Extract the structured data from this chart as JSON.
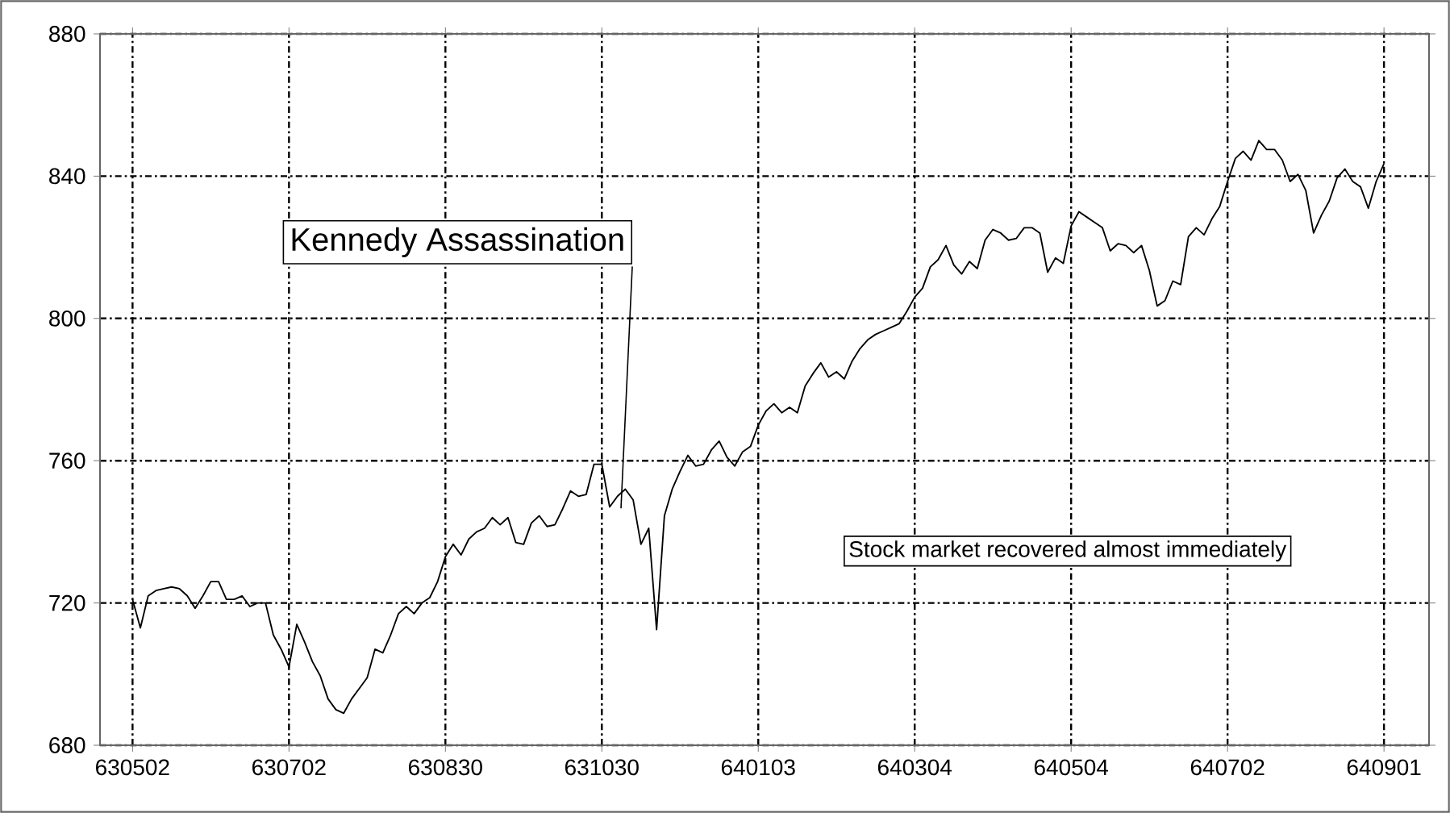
{
  "chart_data": {
    "type": "line",
    "categories": [
      "630502",
      null,
      null,
      null,
      null,
      null,
      null,
      null,
      null,
      null,
      null,
      null,
      null,
      null,
      null,
      null,
      null,
      null,
      null,
      null,
      "630702",
      null,
      null,
      null,
      null,
      null,
      null,
      null,
      null,
      null,
      null,
      null,
      null,
      null,
      null,
      null,
      null,
      null,
      null,
      null,
      "630830",
      null,
      null,
      null,
      null,
      null,
      null,
      null,
      null,
      null,
      null,
      null,
      null,
      null,
      null,
      null,
      null,
      null,
      null,
      null,
      "631030",
      null,
      null,
      null,
      null,
      null,
      null,
      null,
      null,
      null,
      null,
      null,
      null,
      null,
      null,
      null,
      null,
      null,
      null,
      null,
      "640103",
      null,
      null,
      null,
      null,
      null,
      null,
      null,
      null,
      null,
      null,
      null,
      null,
      null,
      null,
      null,
      null,
      null,
      null,
      null,
      "640304",
      null,
      null,
      null,
      null,
      null,
      null,
      null,
      null,
      null,
      null,
      null,
      null,
      null,
      null,
      null,
      null,
      null,
      null,
      null,
      "640504",
      null,
      null,
      null,
      null,
      null,
      null,
      null,
      null,
      null,
      null,
      null,
      null,
      null,
      null,
      null,
      null,
      null,
      null,
      null,
      "640702",
      null,
      null,
      null,
      null,
      null,
      null,
      null,
      null,
      null,
      null,
      null,
      null,
      null,
      null,
      null,
      null,
      null,
      null,
      null,
      "640901"
    ],
    "values": [
      721,
      713,
      722,
      723.5,
      724,
      724.5,
      724,
      722,
      718.5,
      722,
      726,
      726,
      721,
      721,
      722,
      719,
      720,
      720,
      711,
      707,
      702,
      714,
      709,
      703.5,
      699.5,
      693,
      690,
      689,
      693,
      696,
      699,
      707,
      706,
      711,
      717,
      719,
      717,
      720,
      721.5,
      726,
      733,
      736.5,
      733.5,
      738,
      740,
      741,
      744,
      742,
      744,
      737,
      736.5,
      742.5,
      744.5,
      741.5,
      742,
      746.5,
      751.5,
      750,
      750.5,
      759,
      759,
      747,
      750,
      752,
      749,
      736.5,
      741,
      712.5,
      744.5,
      752,
      757,
      761.5,
      758.5,
      759,
      763,
      765.5,
      761,
      758.5,
      762.5,
      764,
      770,
      774,
      776,
      773.5,
      775,
      773.5,
      781,
      784.5,
      787.5,
      783.5,
      785,
      783,
      788,
      791.5,
      794,
      795.5,
      796.5,
      797.5,
      798.5,
      802,
      806,
      808.5,
      814.5,
      816.5,
      820.5,
      815,
      812.5,
      816,
      814,
      822,
      825,
      824,
      822,
      822.5,
      825.5,
      825.5,
      824,
      813,
      817,
      815.5,
      826,
      830,
      828.5,
      827,
      825.5,
      819,
      821,
      820.5,
      818.5,
      820.5,
      813.5,
      803.5,
      805,
      810.5,
      809.5,
      823,
      825.5,
      823.5,
      828,
      831.5,
      838.5,
      845,
      847,
      844.5,
      850,
      847.5,
      847.5,
      844.5,
      838.5,
      840.5,
      836,
      824,
      829,
      833,
      839.5,
      842,
      838.5,
      837,
      831,
      838.5,
      843.5
    ],
    "color": "#000000",
    "ylim": [
      680,
      880
    ],
    "yticks": [
      680,
      720,
      760,
      800,
      840,
      880
    ],
    "grid": true,
    "marker": "none",
    "line_style": "solid",
    "annotations": [
      "Kennedy Assassination",
      "Stock market recovered almost immediately"
    ]
  }
}
